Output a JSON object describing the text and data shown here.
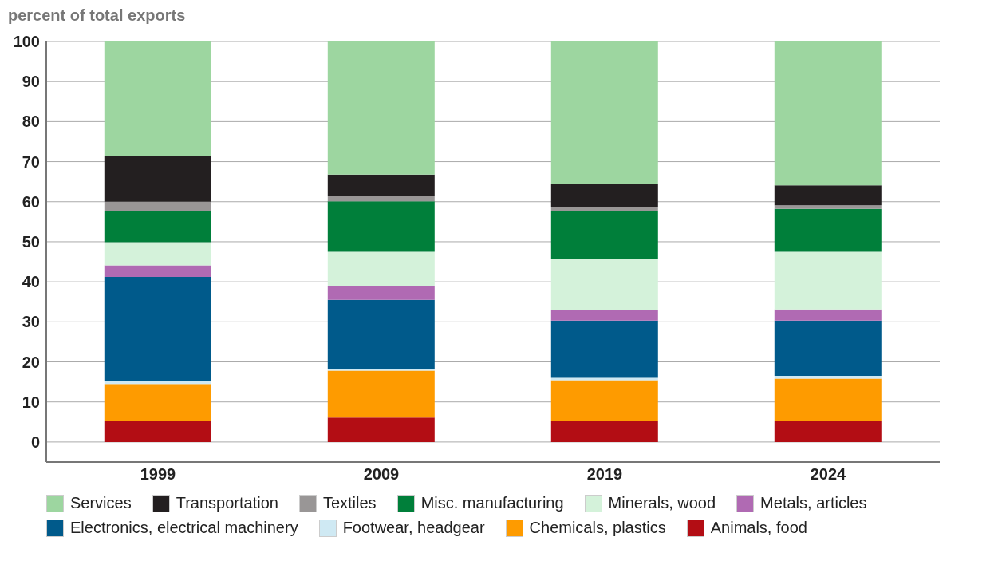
{
  "chart_data": {
    "type": "bar",
    "stacked": true,
    "ylabel": "percent of total exports",
    "categories": [
      "1999",
      "2009",
      "2019",
      "2024"
    ],
    "series": [
      {
        "name": "Animals, food",
        "color": "#b30d14",
        "values": [
          5.3,
          6.1,
          5.3,
          5.3
        ]
      },
      {
        "name": "Chemicals, plastics",
        "color": "#fe9b00",
        "values": [
          9.2,
          11.7,
          10.1,
          10.5
        ]
      },
      {
        "name": "Footwear, headgear",
        "color": "#cfe9f3",
        "values": [
          0.7,
          0.5,
          0.6,
          0.7
        ]
      },
      {
        "name": "Electronics, electrical machinery",
        "color": "#005a8b",
        "values": [
          26.0,
          17.2,
          14.3,
          13.8
        ]
      },
      {
        "name": "Metals, articles",
        "color": "#b06ab3",
        "values": [
          2.9,
          3.4,
          2.7,
          2.8
        ]
      },
      {
        "name": "Minerals, wood",
        "color": "#d4f2da",
        "values": [
          5.8,
          8.6,
          12.6,
          14.4
        ]
      },
      {
        "name": "Misc. manufacturing",
        "color": "#007f3a",
        "values": [
          7.7,
          12.6,
          12.0,
          10.7
        ]
      },
      {
        "name": "Textiles",
        "color": "#999696",
        "values": [
          2.4,
          1.3,
          1.1,
          0.9
        ]
      },
      {
        "name": "Transportation",
        "color": "#231f20",
        "values": [
          11.4,
          5.4,
          5.8,
          5.0
        ]
      },
      {
        "name": "Services",
        "color": "#9dd6a0",
        "values": [
          28.6,
          33.2,
          35.5,
          35.9
        ]
      }
    ],
    "ylim": [
      -5,
      100
    ],
    "yticks": [
      0,
      10,
      20,
      30,
      40,
      50,
      60,
      70,
      80,
      90,
      100
    ],
    "grid": "y",
    "legend": "bottom"
  }
}
